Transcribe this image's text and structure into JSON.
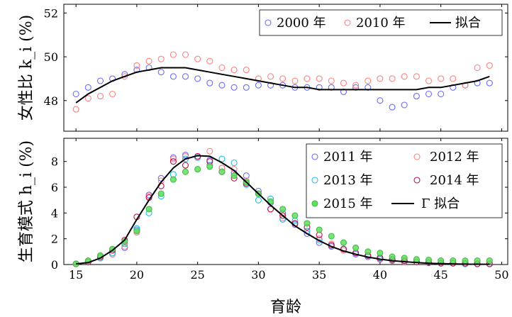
{
  "chart_data": [
    {
      "type": "scatter",
      "ylabel": "女性比 k_i (%)",
      "xlim": [
        14,
        50.5
      ],
      "ylim": [
        46.6,
        52.4
      ],
      "yticks": [
        48,
        50,
        52
      ],
      "x": [
        15,
        16,
        17,
        18,
        19,
        20,
        21,
        22,
        23,
        24,
        25,
        26,
        27,
        28,
        29,
        30,
        31,
        32,
        33,
        34,
        35,
        36,
        37,
        38,
        39,
        40,
        41,
        42,
        43,
        44,
        45,
        46,
        47,
        48,
        49
      ],
      "series": [
        {
          "name": "2000 年",
          "color": "#6b6bff",
          "marker": "circle-open",
          "values": [
            48.3,
            48.6,
            48.9,
            49.0,
            49.2,
            49.4,
            49.5,
            49.3,
            49.1,
            49.1,
            49.0,
            48.8,
            48.7,
            48.6,
            48.6,
            48.7,
            48.7,
            48.7,
            48.6,
            48.6,
            48.6,
            48.6,
            48.4,
            48.6,
            48.6,
            48.0,
            47.7,
            47.8,
            48.2,
            48.3,
            48.3,
            48.6,
            48.7,
            48.8,
            48.8
          ]
        },
        {
          "name": "2010 年",
          "color": "#ff8080",
          "marker": "circle-open",
          "values": [
            47.6,
            48.1,
            48.2,
            48.3,
            49.1,
            49.6,
            49.8,
            49.9,
            50.1,
            50.1,
            49.9,
            49.8,
            49.5,
            49.4,
            49.4,
            49.0,
            49.1,
            49.0,
            48.9,
            49.0,
            49.0,
            48.9,
            48.8,
            48.7,
            48.9,
            49.0,
            49.0,
            49.1,
            49.1,
            48.9,
            49.0,
            49.0,
            48.7,
            49.5,
            49.6
          ]
        },
        {
          "name": "拟合",
          "color": "#000000",
          "marker": "line",
          "values": [
            47.9,
            48.3,
            48.6,
            48.9,
            49.1,
            49.3,
            49.4,
            49.5,
            49.5,
            49.5,
            49.4,
            49.3,
            49.2,
            49.1,
            49.0,
            48.9,
            48.8,
            48.7,
            48.6,
            48.6,
            48.5,
            48.5,
            48.5,
            48.5,
            48.5,
            48.5,
            48.5,
            48.5,
            48.5,
            48.6,
            48.6,
            48.7,
            48.8,
            48.9,
            49.1
          ]
        }
      ],
      "legend": "top-right"
    },
    {
      "type": "scatter",
      "xlabel": "育龄",
      "ylabel": "生育模式 h_i (%)",
      "xlim": [
        14,
        50.5
      ],
      "ylim": [
        0,
        9.8
      ],
      "xticks": [
        15,
        20,
        25,
        30,
        35,
        40,
        45,
        50
      ],
      "yticks": [
        0,
        2,
        4,
        6,
        8
      ],
      "x": [
        15,
        16,
        17,
        18,
        19,
        20,
        21,
        22,
        23,
        24,
        25,
        26,
        27,
        28,
        29,
        30,
        31,
        32,
        33,
        34,
        35,
        36,
        37,
        38,
        39,
        40,
        41,
        42,
        43,
        44,
        45,
        46,
        47,
        48,
        49
      ],
      "series": [
        {
          "name": "2011 年",
          "color": "#6b6bff",
          "marker": "circle-open",
          "values": [
            0.05,
            0.2,
            0.5,
            0.8,
            1.3,
            2.7,
            5.4,
            6.7,
            8.3,
            8.5,
            8.3,
            8.1,
            7.5,
            7.1,
            6.9,
            5.7,
            4.8,
            4.0,
            3.1,
            2.4,
            1.7,
            1.4,
            1.1,
            0.8,
            0.6,
            0.4,
            0.3,
            0.2,
            0.2,
            0.15,
            0.1,
            0.1,
            0.05,
            0.05,
            0.05
          ]
        },
        {
          "name": "2012 年",
          "color": "#ff8080",
          "marker": "circle-open",
          "values": [
            0.05,
            0.2,
            0.5,
            0.8,
            1.4,
            2.5,
            5.3,
            6.5,
            8.2,
            8.4,
            8.4,
            8.8,
            7.5,
            7.4,
            6.5,
            5.5,
            4.3,
            3.6,
            3.2,
            2.6,
            2.0,
            1.6,
            1.1,
            0.9,
            0.7,
            0.5,
            0.35,
            0.25,
            0.2,
            0.15,
            0.1,
            0.1,
            0.05,
            0.05,
            0.05
          ]
        },
        {
          "name": "2013 年",
          "color": "#20c0e0",
          "marker": "circle-open",
          "values": [
            0.05,
            0.2,
            0.5,
            0.9,
            1.6,
            2.8,
            4.0,
            5.3,
            7.0,
            8.2,
            8.3,
            7.7,
            8.2,
            7.9,
            6.2,
            5.0,
            5.1,
            3.5,
            3.4,
            2.6,
            1.9,
            1.5,
            1.2,
            0.9,
            0.7,
            0.55,
            0.4,
            0.3,
            0.2,
            0.15,
            0.1,
            0.1,
            0.05,
            0.05,
            0.05
          ]
        },
        {
          "name": "2014 年",
          "color": "#c0104a",
          "marker": "circle-open",
          "values": [
            0.05,
            0.2,
            0.6,
            1.1,
            1.9,
            3.7,
            5.2,
            6.1,
            8.0,
            7.7,
            8.4,
            8.0,
            7.2,
            6.7,
            6.3,
            5.5,
            4.3,
            3.8,
            3.2,
            2.9,
            2.3,
            1.5,
            1.2,
            0.9,
            0.7,
            0.5,
            0.4,
            0.3,
            0.2,
            0.15,
            0.1,
            0.1,
            0.1,
            0.05,
            0.05
          ]
        },
        {
          "name": "2015 年",
          "color": "#5ee05e",
          "marker": "circle-filled",
          "values": [
            0.05,
            0.3,
            0.7,
            1.2,
            1.8,
            2.6,
            4.3,
            5.5,
            6.6,
            7.2,
            7.4,
            7.6,
            7.2,
            6.9,
            6.4,
            5.5,
            4.9,
            4.3,
            3.8,
            3.2,
            2.7,
            2.2,
            1.7,
            1.3,
            1.0,
            0.9,
            0.6,
            0.5,
            0.4,
            0.35,
            0.3,
            0.3,
            0.3,
            0.3,
            0.3
          ]
        },
        {
          "name": "Γ 拟合",
          "color": "#000000",
          "marker": "line",
          "values": [
            0.05,
            0.15,
            0.5,
            1.1,
            1.9,
            3.5,
            5.0,
            6.4,
            7.5,
            8.2,
            8.45,
            8.4,
            7.9,
            7.3,
            6.4,
            5.5,
            4.6,
            3.8,
            3.0,
            2.4,
            1.85,
            1.4,
            1.05,
            0.8,
            0.58,
            0.42,
            0.3,
            0.22,
            0.15,
            0.1,
            0.07,
            0.05,
            0.03,
            0.02,
            0.02
          ]
        }
      ],
      "legend": "top-right"
    }
  ]
}
